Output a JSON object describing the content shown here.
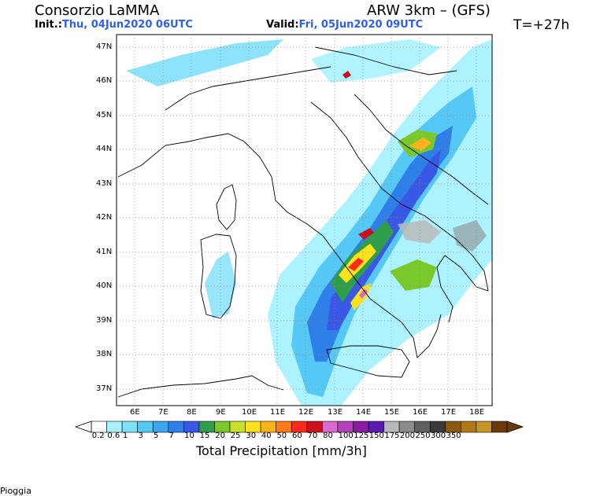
{
  "header": {
    "model_org": "Consorzio LaMMA",
    "init_label": "Init.:",
    "init_value": "Thu, 04Jun2020 06UTC",
    "model_name": "ARW 3km – (GFS)",
    "valid_label": "Valid:",
    "valid_value": "Fri, 05Jun2020 09UTC",
    "forecast_step": "T=+27h"
  },
  "map": {
    "lat_labels": [
      "47N",
      "46N",
      "45N",
      "44N",
      "43N",
      "42N",
      "41N",
      "40N",
      "39N",
      "38N",
      "37N"
    ],
    "lon_labels": [
      "6E",
      "7E",
      "8E",
      "9E",
      "10E",
      "11E",
      "12E",
      "13E",
      "14E",
      "15E",
      "16E",
      "17E",
      "18E"
    ]
  },
  "colorbar": {
    "title": "Total Precipitation [mm/3h]",
    "ticks": [
      "0.2",
      "0.6",
      "1",
      "3",
      "5",
      "7",
      "10",
      "15",
      "20",
      "25",
      "30",
      "40",
      "50",
      "60",
      "70",
      "80",
      "100",
      "125",
      "150",
      "175",
      "200",
      "250",
      "300",
      "350"
    ],
    "colors": [
      "#ffffff",
      "#a8f2ff",
      "#7fe0fa",
      "#55c8f5",
      "#3aa6ee",
      "#2f7fe8",
      "#3a58e6",
      "#2f9e4a",
      "#7bc82a",
      "#c7e02a",
      "#ffe21a",
      "#ffb31a",
      "#ff7a1a",
      "#ff2a1a",
      "#c8101e",
      "#d86ad0",
      "#b640b8",
      "#8a1aa0",
      "#5a1ab0",
      "#b8b8b8",
      "#8c8c8c",
      "#606060",
      "#3a3a3a",
      "#8c5a12",
      "#b07818",
      "#c89628",
      "#6a3a0a"
    ]
  },
  "footer": {
    "text": "Pioggia"
  }
}
